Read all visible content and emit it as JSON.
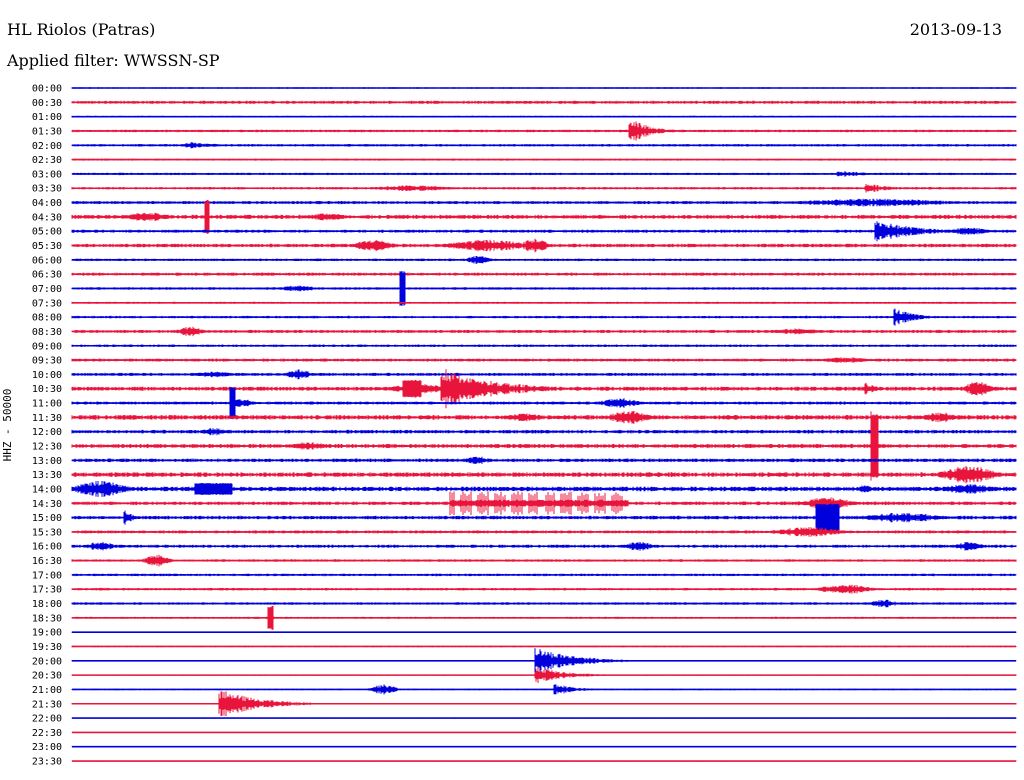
{
  "header": {
    "station": "HL Riolos (Patras)",
    "date": "2013-09-13",
    "filter_label": "Applied filter: WWSSN-SP"
  },
  "channel_label": "HHZ - 50000",
  "colors": {
    "even_trace": "#0000dd",
    "odd_trace": "#e8143c",
    "text": "#000000"
  },
  "chart_data": {
    "type": "line",
    "kind": "helicorder",
    "ylabel": "HHZ - 50000",
    "row_labels": [
      "00:00",
      "00:30",
      "01:00",
      "01:30",
      "02:00",
      "02:30",
      "03:00",
      "03:30",
      "04:00",
      "04:30",
      "05:00",
      "05:30",
      "06:00",
      "06:30",
      "07:00",
      "07:30",
      "08:00",
      "08:30",
      "09:00",
      "09:30",
      "10:00",
      "10:30",
      "11:00",
      "11:30",
      "12:00",
      "12:30",
      "13:00",
      "13:30",
      "14:00",
      "14:30",
      "15:00",
      "15:30",
      "16:00",
      "16:30",
      "17:00",
      "17:30",
      "18:00",
      "18:30",
      "19:00",
      "19:30",
      "20:00",
      "20:30",
      "21:00",
      "21:30",
      "22:00",
      "22:30",
      "23:00",
      "23:30"
    ],
    "row_minutes": 30,
    "noise_level": [
      0.6,
      1.2,
      0.7,
      1.0,
      1.0,
      0.8,
      0.9,
      1.0,
      1.2,
      1.6,
      1.2,
      1.4,
      1.0,
      1.2,
      1.0,
      0.8,
      1.0,
      1.2,
      1.0,
      1.2,
      1.2,
      1.6,
      1.2,
      1.8,
      1.4,
      1.6,
      1.4,
      1.8,
      1.8,
      1.4,
      1.4,
      1.2,
      1.2,
      1.0,
      1.0,
      1.0,
      1.0,
      0.8,
      0.5,
      0.6,
      0.5,
      0.5,
      0.6,
      0.6,
      0.4,
      0.4,
      0.4,
      0.4
    ],
    "events": [
      {
        "row": 3,
        "t": 0.59,
        "amp": 14,
        "dur": 0.02,
        "shape": "quake"
      },
      {
        "row": 4,
        "t": 0.12,
        "amp": 4,
        "dur": 0.03,
        "shape": "quake"
      },
      {
        "row": 6,
        "t": 0.81,
        "amp": 4,
        "dur": 0.03,
        "shape": "quake"
      },
      {
        "row": 7,
        "t": 0.36,
        "amp": 3,
        "dur": 0.06,
        "shape": "burst"
      },
      {
        "row": 7,
        "t": 0.84,
        "amp": 5,
        "dur": 0.03,
        "shape": "quake"
      },
      {
        "row": 8,
        "t": 0.85,
        "amp": 4,
        "dur": 0.12,
        "shape": "burst"
      },
      {
        "row": 9,
        "t": 0.08,
        "amp": 5,
        "dur": 0.03,
        "shape": "burst"
      },
      {
        "row": 9,
        "t": 0.143,
        "amp": 17,
        "dur": 0.003,
        "shape": "spike"
      },
      {
        "row": 9,
        "t": 0.27,
        "amp": 4,
        "dur": 0.03,
        "shape": "burst"
      },
      {
        "row": 10,
        "t": 0.85,
        "amp": 12,
        "dur": 0.04,
        "shape": "quake"
      },
      {
        "row": 10,
        "t": 0.95,
        "amp": 4,
        "dur": 0.03,
        "shape": "burst"
      },
      {
        "row": 11,
        "t": 0.32,
        "amp": 6,
        "dur": 0.03,
        "shape": "burst"
      },
      {
        "row": 11,
        "t": 0.44,
        "amp": 6,
        "dur": 0.06,
        "shape": "burst"
      },
      {
        "row": 11,
        "t": 0.49,
        "amp": 7,
        "dur": 0.02,
        "shape": "burst"
      },
      {
        "row": 12,
        "t": 0.43,
        "amp": 4,
        "dur": 0.02,
        "shape": "burst"
      },
      {
        "row": 14,
        "t": 0.35,
        "amp": 18,
        "dur": 0.003,
        "shape": "spike"
      },
      {
        "row": 14,
        "t": 0.24,
        "amp": 3,
        "dur": 0.03,
        "shape": "burst"
      },
      {
        "row": 16,
        "t": 0.87,
        "amp": 10,
        "dur": 0.02,
        "shape": "quake"
      },
      {
        "row": 17,
        "t": 0.125,
        "amp": 5,
        "dur": 0.02,
        "shape": "burst"
      },
      {
        "row": 17,
        "t": 0.77,
        "amp": 3,
        "dur": 0.04,
        "shape": "burst"
      },
      {
        "row": 19,
        "t": 0.82,
        "amp": 3,
        "dur": 0.04,
        "shape": "burst"
      },
      {
        "row": 20,
        "t": 0.15,
        "amp": 3,
        "dur": 0.03,
        "shape": "burst"
      },
      {
        "row": 20,
        "t": 0.24,
        "amp": 5,
        "dur": 0.02,
        "shape": "burst"
      },
      {
        "row": 21,
        "t": 0.36,
        "amp": 9,
        "dur": 0.01,
        "shape": "spike"
      },
      {
        "row": 21,
        "t": 0.37,
        "amp": 5,
        "dur": 0.05,
        "shape": "burst"
      },
      {
        "row": 21,
        "t": 0.39,
        "amp": 24,
        "dur": 0.05,
        "shape": "quake"
      },
      {
        "row": 21,
        "t": 0.45,
        "amp": 4,
        "dur": 0.03,
        "shape": "burst"
      },
      {
        "row": 21,
        "t": 0.84,
        "amp": 8,
        "dur": 0.01,
        "shape": "quake"
      },
      {
        "row": 21,
        "t": 0.96,
        "amp": 8,
        "dur": 0.02,
        "shape": "burst"
      },
      {
        "row": 22,
        "t": 0.17,
        "amp": 16,
        "dur": 0.003,
        "shape": "spike"
      },
      {
        "row": 22,
        "t": 0.18,
        "amp": 4,
        "dur": 0.02,
        "shape": "burst"
      },
      {
        "row": 22,
        "t": 0.58,
        "amp": 5,
        "dur": 0.03,
        "shape": "burst"
      },
      {
        "row": 23,
        "t": 0.48,
        "amp": 4,
        "dur": 0.03,
        "shape": "burst"
      },
      {
        "row": 23,
        "t": 0.59,
        "amp": 7,
        "dur": 0.03,
        "shape": "burst"
      },
      {
        "row": 23,
        "t": 0.92,
        "amp": 5,
        "dur": 0.03,
        "shape": "burst"
      },
      {
        "row": 24,
        "t": 0.15,
        "amp": 4,
        "dur": 0.02,
        "shape": "burst"
      },
      {
        "row": 25,
        "t": 0.85,
        "amp": 35,
        "dur": 0.004,
        "shape": "spike"
      },
      {
        "row": 25,
        "t": 0.25,
        "amp": 4,
        "dur": 0.03,
        "shape": "burst"
      },
      {
        "row": 26,
        "t": 0.43,
        "amp": 4,
        "dur": 0.02,
        "shape": "burst"
      },
      {
        "row": 27,
        "t": 0.95,
        "amp": 9,
        "dur": 0.04,
        "shape": "burst"
      },
      {
        "row": 28,
        "t": 0.03,
        "amp": 8,
        "dur": 0.04,
        "shape": "burst"
      },
      {
        "row": 28,
        "t": 0.15,
        "amp": 6,
        "dur": 0.02,
        "shape": "spike"
      },
      {
        "row": 28,
        "t": 0.84,
        "amp": 5,
        "dur": 0.01,
        "shape": "burst"
      },
      {
        "row": 28,
        "t": 0.95,
        "amp": 5,
        "dur": 0.04,
        "shape": "burst"
      },
      {
        "row": 29,
        "t": 0.4,
        "amp": 12,
        "dur": 0.19,
        "shape": "tremor"
      },
      {
        "row": 29,
        "t": 0.8,
        "amp": 6,
        "dur": 0.04,
        "shape": "burst"
      },
      {
        "row": 30,
        "t": 0.055,
        "amp": 8,
        "dur": 0.01,
        "shape": "quake"
      },
      {
        "row": 30,
        "t": 0.8,
        "amp": 14,
        "dur": 0.025,
        "shape": "block"
      },
      {
        "row": 30,
        "t": 0.88,
        "amp": 5,
        "dur": 0.06,
        "shape": "burst"
      },
      {
        "row": 31,
        "t": 0.78,
        "amp": 5,
        "dur": 0.05,
        "shape": "burst"
      },
      {
        "row": 32,
        "t": 0.03,
        "amp": 5,
        "dur": 0.02,
        "shape": "burst"
      },
      {
        "row": 32,
        "t": 0.6,
        "amp": 5,
        "dur": 0.02,
        "shape": "burst"
      },
      {
        "row": 32,
        "t": 0.95,
        "amp": 5,
        "dur": 0.02,
        "shape": "burst"
      },
      {
        "row": 33,
        "t": 0.09,
        "amp": 6,
        "dur": 0.02,
        "shape": "burst"
      },
      {
        "row": 35,
        "t": 0.82,
        "amp": 5,
        "dur": 0.04,
        "shape": "burst"
      },
      {
        "row": 36,
        "t": 0.86,
        "amp": 4,
        "dur": 0.02,
        "shape": "burst"
      },
      {
        "row": 37,
        "t": 0.21,
        "amp": 12,
        "dur": 0.003,
        "shape": "spike"
      },
      {
        "row": 40,
        "t": 0.49,
        "amp": 14,
        "dur": 0.04,
        "shape": "quake"
      },
      {
        "row": 41,
        "t": 0.49,
        "amp": 9,
        "dur": 0.03,
        "shape": "quake"
      },
      {
        "row": 42,
        "t": 0.33,
        "amp": 5,
        "dur": 0.02,
        "shape": "burst"
      },
      {
        "row": 42,
        "t": 0.51,
        "amp": 7,
        "dur": 0.02,
        "shape": "quake"
      },
      {
        "row": 43,
        "t": 0.155,
        "amp": 15,
        "dur": 0.04,
        "shape": "quake"
      }
    ]
  }
}
